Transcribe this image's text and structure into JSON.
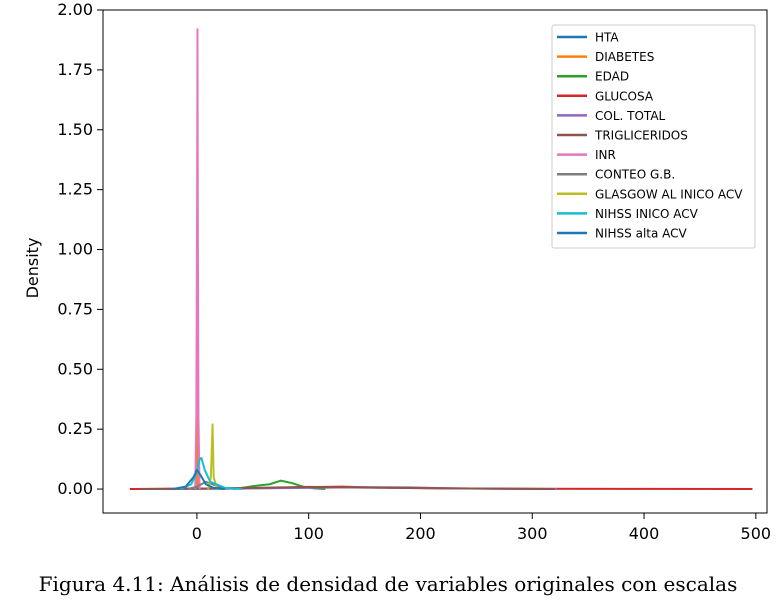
{
  "caption": "Figura 4.11: Análisis de densidad de variables originales con escalas",
  "chart_data": {
    "type": "line",
    "title": "",
    "xlabel": "",
    "ylabel": "Density",
    "xlim": [
      -84,
      510
    ],
    "ylim": [
      -0.1,
      2.0
    ],
    "xticks": [
      0,
      100,
      200,
      300,
      400,
      500
    ],
    "yticks": [
      0.0,
      0.25,
      0.5,
      0.75,
      1.0,
      1.25,
      1.5,
      1.75,
      2.0
    ],
    "ytick_labels": [
      "0.00",
      "0.25",
      "0.50",
      "0.75",
      "1.00",
      "1.25",
      "1.50",
      "1.75",
      "2.00"
    ],
    "legend_position": "top-right",
    "grid": false,
    "series": [
      {
        "name": "HTA",
        "color": "#1f77b4",
        "points": [
          [
            -0.5,
            0
          ],
          [
            0.2,
            0.25
          ],
          [
            0.5,
            1.07
          ],
          [
            0.8,
            0.25
          ],
          [
            1.5,
            0
          ]
        ]
      },
      {
        "name": "DIABETES",
        "color": "#ff7f0e",
        "points": [
          [
            -0.5,
            0
          ],
          [
            0.3,
            0.2
          ],
          [
            0.6,
            0.47
          ],
          [
            0.9,
            0.2
          ],
          [
            1.6,
            0
          ]
        ]
      },
      {
        "name": "EDAD",
        "color": "#2ca02c",
        "points": [
          [
            20,
            0
          ],
          [
            40,
            0.005
          ],
          [
            55,
            0.015
          ],
          [
            65,
            0.02
          ],
          [
            75,
            0.035
          ],
          [
            85,
            0.025
          ],
          [
            95,
            0.01
          ],
          [
            105,
            0.003
          ],
          [
            115,
            0
          ]
        ]
      },
      {
        "name": "GLUCOSA",
        "color": "#d62728",
        "points": [
          [
            -60,
            0
          ],
          [
            0,
            0.002
          ],
          [
            60,
            0.004
          ],
          [
            100,
            0.008
          ],
          [
            130,
            0.01
          ],
          [
            160,
            0.006
          ],
          [
            220,
            0.003
          ],
          [
            300,
            0.001
          ],
          [
            400,
            0.0005
          ],
          [
            497,
            0
          ]
        ]
      },
      {
        "name": "COL. TOTAL",
        "color": "#9467bd",
        "points": [
          [
            -30,
            0
          ],
          [
            40,
            0.002
          ],
          [
            100,
            0.005
          ],
          [
            150,
            0.008
          ],
          [
            190,
            0.007
          ],
          [
            230,
            0.003
          ],
          [
            270,
            0.001
          ],
          [
            322,
            0
          ]
        ]
      },
      {
        "name": "TRIGLICERIDOS",
        "color": "#8c564b",
        "points": [
          [
            -50,
            0
          ],
          [
            0,
            0.002
          ],
          [
            50,
            0.005
          ],
          [
            100,
            0.009
          ],
          [
            150,
            0.006
          ],
          [
            200,
            0.004
          ],
          [
            260,
            0.002
          ],
          [
            320,
            0
          ]
        ]
      },
      {
        "name": "INR",
        "color": "#e377c2",
        "points": [
          [
            -1.5,
            0
          ],
          [
            -0.5,
            0.3
          ],
          [
            0.2,
            1.2
          ],
          [
            0.5,
            1.92
          ],
          [
            0.8,
            1.2
          ],
          [
            1.4,
            0.3
          ],
          [
            2.4,
            0
          ]
        ]
      },
      {
        "name": "CONTEO G.B.",
        "color": "#7f7f7f",
        "points": [
          [
            -8,
            0
          ],
          [
            0,
            0.01
          ],
          [
            8,
            0.03
          ],
          [
            14,
            0.02
          ],
          [
            22,
            0.005
          ],
          [
            35,
            0
          ]
        ]
      },
      {
        "name": "GLASGOW AL INICO ACV",
        "color": "#bcbd22",
        "points": [
          [
            10,
            0
          ],
          [
            12.5,
            0.05
          ],
          [
            14,
            0.27
          ],
          [
            15,
            0.05
          ],
          [
            18,
            0
          ]
        ]
      },
      {
        "name": "NIHSS INICO ACV",
        "color": "#17becf",
        "points": [
          [
            -15,
            0
          ],
          [
            -5,
            0.02
          ],
          [
            0,
            0.07
          ],
          [
            2,
            0.12
          ],
          [
            4,
            0.13
          ],
          [
            7,
            0.08
          ],
          [
            12,
            0.03
          ],
          [
            25,
            0.005
          ],
          [
            40,
            0
          ]
        ]
      },
      {
        "name": "NIHSS alta ACV",
        "color": "#1f77b4",
        "points": [
          [
            -22,
            0
          ],
          [
            -10,
            0.01
          ],
          [
            -3,
            0.05
          ],
          [
            0,
            0.08
          ],
          [
            3,
            0.06
          ],
          [
            8,
            0.02
          ],
          [
            15,
            0.005
          ],
          [
            25,
            0
          ]
        ]
      }
    ]
  }
}
